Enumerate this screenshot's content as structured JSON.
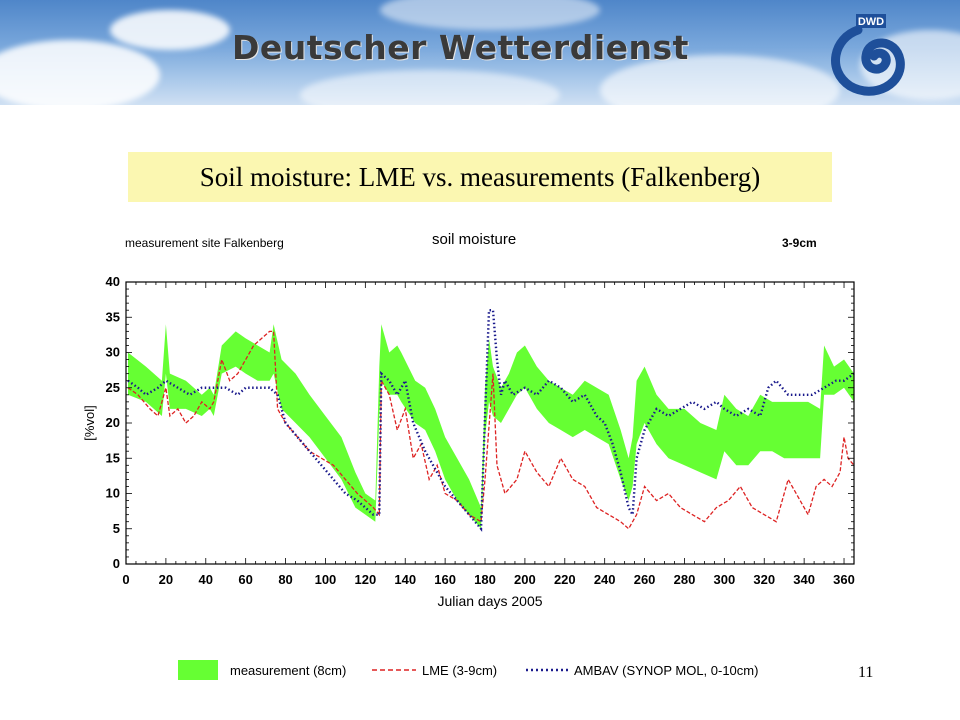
{
  "header": {
    "brand": "Deutscher Wetterdienst",
    "logo_text": "DWD",
    "logo_icon": "dwd-spiral-logo-icon"
  },
  "slide": {
    "title": "Soil moisture:  LME   vs.  measurements  (Falkenberg)",
    "page_number": "11",
    "title_box_color": "#fbf7b1"
  },
  "chart_data": {
    "type": "line",
    "title": "soil moisture",
    "site_label": "measurement site Falkenberg",
    "depth_label": "3-9cm",
    "xlabel": "Julian days 2005",
    "ylabel": "[%vol]",
    "xlim": [
      0,
      365
    ],
    "ylim": [
      0,
      40
    ],
    "xticks": [
      0,
      20,
      40,
      60,
      80,
      100,
      120,
      140,
      160,
      180,
      200,
      220,
      240,
      260,
      280,
      300,
      320,
      340,
      360
    ],
    "yticks": [
      0,
      5,
      10,
      15,
      20,
      25,
      30,
      35,
      40
    ],
    "grid": false,
    "series": [
      {
        "name": "measurement (8cm)",
        "style": "band",
        "color": "#66ff33",
        "x": [
          1,
          10,
          18,
          20,
          22,
          30,
          38,
          42,
          44,
          48,
          55,
          60,
          66,
          72,
          74,
          78,
          85,
          92,
          100,
          108,
          115,
          120,
          125,
          127,
          128,
          132,
          136,
          138,
          145,
          150,
          155,
          160,
          166,
          172,
          178,
          180,
          182,
          184,
          188,
          192,
          196,
          200,
          206,
          212,
          218,
          224,
          230,
          236,
          242,
          248,
          252,
          254,
          256,
          260,
          266,
          272,
          280,
          288,
          296,
          300,
          306,
          312,
          318,
          324,
          330,
          336,
          342,
          348,
          350,
          355,
          360,
          365
        ],
        "upper": [
          30,
          28,
          26,
          34,
          27,
          26,
          24,
          25,
          24,
          31,
          33,
          32,
          31,
          30,
          34,
          29,
          27,
          24,
          21,
          18,
          13,
          10,
          9,
          28,
          34,
          30,
          31,
          30,
          26,
          25,
          22,
          18,
          15,
          12,
          8,
          25,
          32,
          28,
          25,
          27,
          30,
          31,
          28,
          26,
          25,
          24,
          26,
          25,
          24,
          19,
          15,
          18,
          26,
          28,
          24,
          22,
          22,
          20,
          19,
          24,
          22,
          21,
          24,
          23,
          23,
          23,
          23,
          22,
          31,
          28,
          29,
          27
        ],
        "lower": [
          24,
          23,
          21,
          27,
          22,
          22,
          21,
          22,
          21,
          27,
          28,
          27,
          26,
          26,
          27,
          22,
          20,
          18,
          15,
          12,
          8,
          7,
          6,
          21,
          26,
          24,
          24,
          23,
          20,
          19,
          16,
          12,
          9,
          7,
          5,
          18,
          23,
          21,
          20,
          22,
          24,
          25,
          22,
          20,
          19,
          18,
          19,
          18,
          17,
          12,
          9,
          11,
          17,
          20,
          17,
          15,
          14,
          13,
          12,
          16,
          14,
          14,
          16,
          16,
          15,
          15,
          15,
          15,
          24,
          24,
          25,
          23
        ]
      },
      {
        "name": "LME (3-9cm)",
        "style": "dashed",
        "color": "#dd2222",
        "x": [
          1,
          6,
          12,
          16,
          20,
          22,
          26,
          30,
          34,
          38,
          42,
          44,
          48,
          52,
          56,
          60,
          64,
          68,
          72,
          74,
          76,
          80,
          86,
          92,
          98,
          104,
          110,
          116,
          120,
          124,
          127,
          128,
          132,
          136,
          140,
          144,
          148,
          152,
          156,
          160,
          166,
          172,
          178,
          180,
          184,
          186,
          190,
          196,
          200,
          206,
          212,
          218,
          224,
          230,
          236,
          242,
          248,
          252,
          256,
          260,
          266,
          272,
          278,
          284,
          290,
          296,
          302,
          308,
          314,
          320,
          326,
          332,
          338,
          342,
          346,
          350,
          354,
          358,
          360,
          362,
          365
        ],
        "y": [
          25,
          24,
          22,
          21,
          25,
          21,
          22,
          20,
          21,
          23,
          22,
          23,
          29,
          26,
          27,
          29,
          31,
          32,
          33,
          33,
          22,
          20,
          18,
          16,
          15,
          14,
          12,
          10,
          9,
          8,
          7,
          26,
          24,
          19,
          22,
          15,
          17,
          12,
          14,
          10,
          9,
          7,
          6,
          12,
          27,
          14,
          10,
          12,
          16,
          13,
          11,
          15,
          12,
          11,
          8,
          7,
          6,
          5,
          7,
          11,
          9,
          10,
          8,
          7,
          6,
          8,
          9,
          11,
          8,
          7,
          6,
          12,
          9,
          7,
          11,
          12,
          11,
          13,
          18,
          15,
          14
        ]
      },
      {
        "name": "AMBAV (SYNOP MOL, 0-10cm)",
        "style": "dotted",
        "color": "#1a1a8c",
        "x": [
          1,
          6,
          10,
          16,
          20,
          26,
          32,
          38,
          42,
          46,
          50,
          56,
          60,
          66,
          72,
          76,
          80,
          86,
          92,
          98,
          104,
          110,
          116,
          120,
          124,
          127,
          128,
          132,
          136,
          140,
          144,
          150,
          156,
          160,
          166,
          172,
          178,
          180,
          182,
          184,
          186,
          188,
          190,
          194,
          200,
          206,
          212,
          218,
          224,
          230,
          236,
          240,
          244,
          248,
          252,
          254,
          256,
          260,
          266,
          272,
          278,
          284,
          290,
          296,
          300,
          306,
          312,
          318,
          322,
          326,
          332,
          338,
          344,
          350,
          356,
          360,
          365
        ],
        "y": [
          26,
          25,
          24,
          25,
          26,
          25,
          24,
          25,
          25,
          25,
          25,
          24,
          25,
          25,
          25,
          24,
          20,
          18,
          16,
          14,
          12,
          10,
          9,
          8,
          7,
          7,
          27,
          26,
          24,
          26,
          20,
          16,
          13,
          11,
          9,
          7,
          5,
          21,
          36,
          36,
          29,
          24,
          26,
          24,
          25,
          24,
          26,
          25,
          23,
          24,
          21,
          20,
          17,
          13,
          8,
          7,
          15,
          19,
          22,
          21,
          22,
          23,
          22,
          23,
          22,
          21,
          22,
          21,
          25,
          26,
          24,
          24,
          24,
          25,
          26,
          26,
          27
        ]
      }
    ]
  }
}
